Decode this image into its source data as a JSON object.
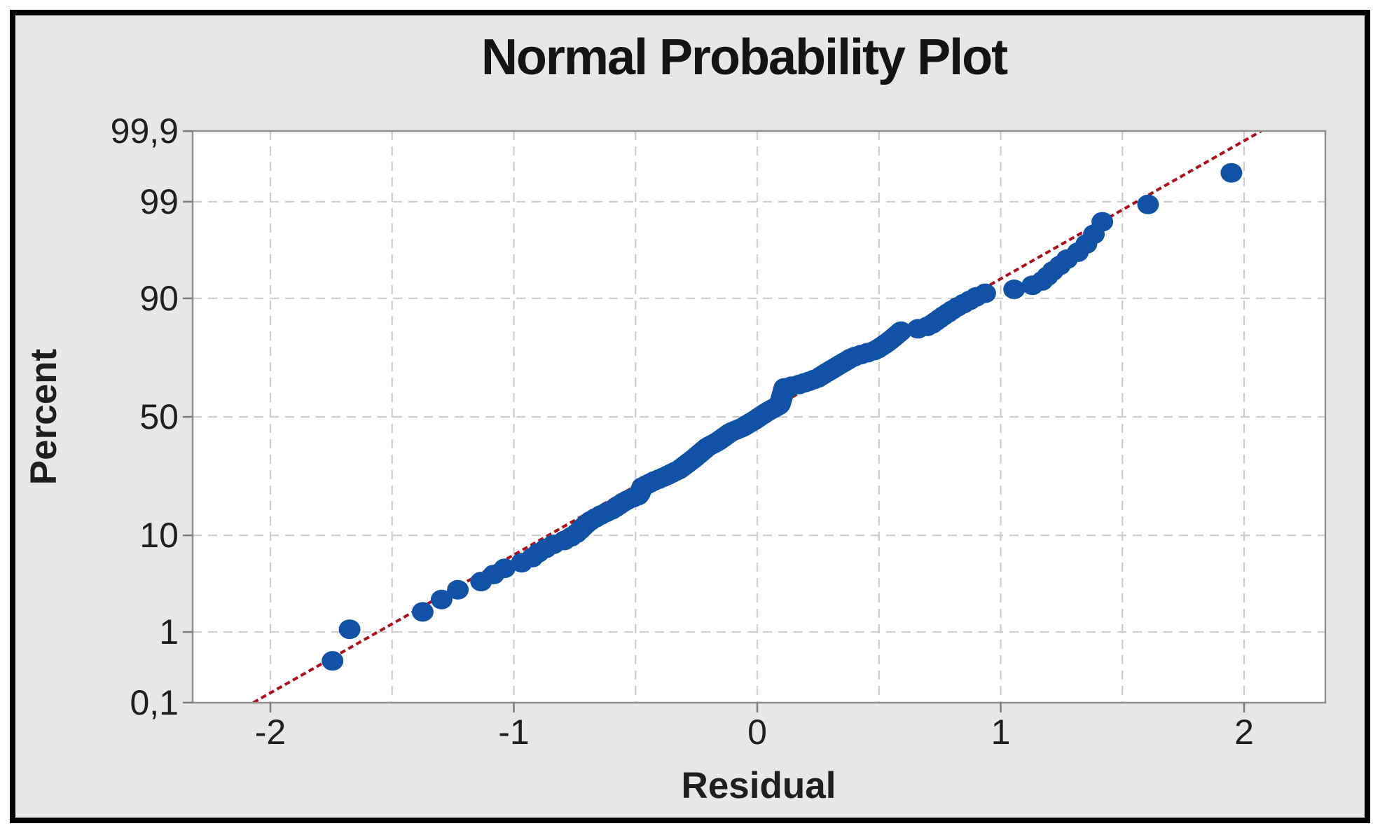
{
  "window": {
    "background": "#E7E7E7",
    "outer_border_color": "#000000",
    "page_background": "#FFFFFF"
  },
  "header": {
    "title": "Normal Probability Plot"
  },
  "y_axis": {
    "label": "Percent",
    "ticks": [
      {
        "label": "99,9",
        "percent": 99.9
      },
      {
        "label": "99",
        "percent": 99
      },
      {
        "label": "90",
        "percent": 90
      },
      {
        "label": "50",
        "percent": 50
      },
      {
        "label": "10",
        "percent": 10
      },
      {
        "label": "1",
        "percent": 1
      },
      {
        "label": "0,1",
        "percent": 0.1
      }
    ],
    "grid_percents": [
      99,
      90,
      50,
      10,
      1
    ]
  },
  "x_axis": {
    "label": "Residual",
    "ticks": [
      {
        "label": "-2",
        "value": -2
      },
      {
        "label": "-1",
        "value": -1
      },
      {
        "label": "0",
        "value": 0
      },
      {
        "label": "1",
        "value": 1
      },
      {
        "label": "2",
        "value": 2
      }
    ],
    "grid_values": [
      -2,
      -1.5,
      -1,
      -0.5,
      0,
      0.5,
      1,
      1.5,
      2
    ]
  },
  "colors": {
    "plot_background": "#FFFFFF",
    "frame": "#8F8F8F",
    "grid": "#CDCDCD",
    "tick": "#7D7D7D",
    "point": "#1052A6",
    "fit_line": "#AE0E1A",
    "text": "#1F1F1F"
  },
  "chart_data": {
    "type": "scatter",
    "title": "Normal Probability Plot",
    "xlabel": "Residual",
    "ylabel": "Percent",
    "y_scale": "normal-probability",
    "x_range": [
      -2.32,
      2.33
    ],
    "y_tick_percents": [
      0.1,
      1,
      10,
      50,
      90,
      99,
      99.9
    ],
    "grid": "dashed, x every 0.5, y at labeled percents",
    "legend": "none",
    "n_points": 150,
    "fit_line": {
      "mean": 0,
      "sd": 0.67,
      "z_extent": 3.0902,
      "style": "dashed red"
    },
    "path_points_residual_percent": [
      [
        -1.747,
        0.37
      ],
      [
        -1.721,
        0.89
      ],
      [
        -1.597,
        1.4
      ],
      [
        -1.347,
        1.79
      ],
      [
        -1.283,
        2.58
      ],
      [
        -1.22,
        3.17
      ],
      [
        -1.114,
        3.88
      ],
      [
        -1.053,
        4.93
      ],
      [
        -0.938,
        6.02
      ],
      [
        -0.895,
        7.19
      ],
      [
        -0.837,
        8.4
      ],
      [
        -0.78,
        9.25
      ],
      [
        -0.737,
        10.57
      ],
      [
        -0.693,
        12.79
      ],
      [
        -0.642,
        14.44
      ],
      [
        -0.593,
        15.87
      ],
      [
        -0.541,
        18.17
      ],
      [
        -0.486,
        19.81
      ],
      [
        -0.472,
        22.43
      ],
      [
        -0.426,
        24.29
      ],
      [
        -0.377,
        25.98
      ],
      [
        -0.319,
        28.49
      ],
      [
        -0.262,
        32.47
      ],
      [
        -0.204,
        37.23
      ],
      [
        -0.161,
        39.54
      ],
      [
        -0.109,
        43.38
      ],
      [
        -0.06,
        45.48
      ],
      [
        -0.012,
        48.49
      ],
      [
        0.04,
        52.11
      ],
      [
        0.092,
        55.12
      ],
      [
        0.112,
        62.48
      ],
      [
        0.161,
        63.34
      ],
      [
        0.207,
        64.76
      ],
      [
        0.247,
        66.15
      ],
      [
        0.294,
        68.88
      ],
      [
        0.342,
        71.51
      ],
      [
        0.391,
        74.02
      ],
      [
        0.437,
        75.24
      ],
      [
        0.486,
        76.42
      ],
      [
        0.538,
        79.12
      ],
      [
        0.593,
        82.43
      ],
      [
        0.653,
        82.82
      ],
      [
        0.708,
        83.77
      ],
      [
        0.76,
        86.07
      ],
      [
        0.812,
        87.99
      ],
      [
        0.855,
        89.15
      ],
      [
        0.898,
        90.25
      ],
      [
        0.947,
        91.12
      ],
      [
        1.004,
        91.25
      ],
      [
        1.042,
        91.48
      ],
      [
        1.157,
        92.5
      ],
      [
        1.214,
        94.25
      ],
      [
        1.272,
        95.58
      ],
      [
        1.329,
        96.43
      ],
      [
        1.378,
        97.47
      ],
      [
        1.407,
        98.14
      ],
      [
        1.442,
        98.51
      ],
      [
        1.646,
        99.02
      ],
      [
        1.948,
        99.55
      ]
    ]
  }
}
